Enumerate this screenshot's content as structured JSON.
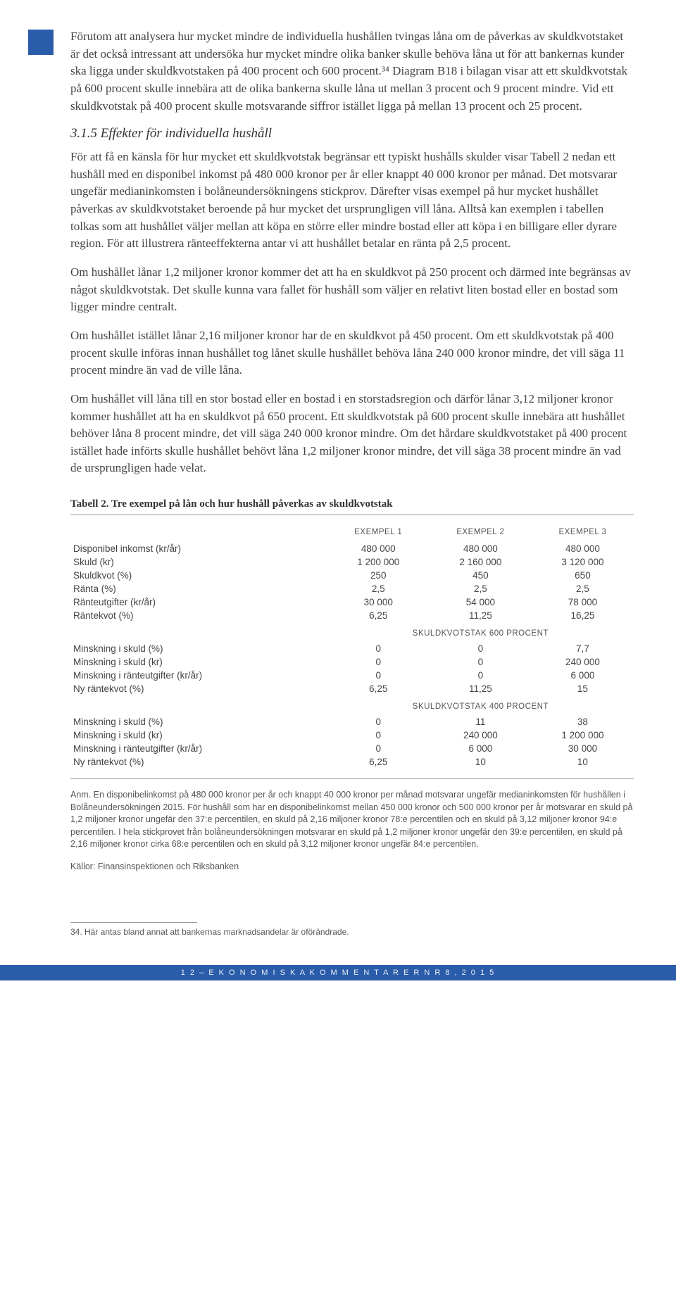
{
  "para1": "Förutom att analysera hur mycket mindre de individuella hushållen tvingas låna om de påverkas av skuldkvotstaket är det också intressant att undersöka hur mycket mindre olika banker skulle behöva låna ut för att bankernas kunder ska ligga under skuldkvotstaken på 400 procent och 600 procent.³⁴ Diagram B18 i bilagan visar att ett skuldkvotstak på 600 procent skulle innebära att de olika bankerna skulle låna ut mellan 3 procent och 9 procent mindre. Vid ett skuldkvotstak på 400 procent skulle motsvarande siffror istället ligga på mellan 13 procent och 25 procent.",
  "heading": "3.1.5 Effekter för individuella hushåll",
  "para2": "För att få en känsla för hur mycket ett skuldkvotstak begränsar ett typiskt hushålls skulder visar Tabell 2 nedan ett hushåll med en disponibel inkomst på 480 000 kronor per år eller knappt 40 000 kronor per månad. Det motsvarar ungefär medianinkomsten i bolåneundersökningens stickprov. Därefter visas exempel på hur mycket hushållet påverkas av skuldkvotstaket beroende på hur mycket det ursprungligen vill låna. Alltså kan exemplen i tabellen tolkas som att hushållet väljer mellan att köpa en större eller mindre bostad eller att köpa i en billigare eller dyrare region. För att illustrera ränteeffekterna antar vi att hushållet betalar en ränta på 2,5 procent.",
  "para3": "Om hushållet lånar 1,2 miljoner kronor kommer det att ha en skuldkvot på 250 procent och därmed inte begränsas av något skuldkvotstak. Det skulle kunna vara fallet för hushåll som väljer en relativt liten bostad eller en bostad som ligger mindre centralt.",
  "para4": "Om hushållet istället lånar 2,16 miljoner kronor har de en skuldkvot på 450 procent. Om ett skuldkvotstak på 400 procent skulle införas innan hushållet tog lånet skulle hushållet behöva låna 240 000 kronor mindre, det vill säga 11 procent mindre än vad de ville låna.",
  "para5": "Om hushållet vill låna till en stor bostad eller en bostad i en storstadsregion och därför lånar 3,12 miljoner kronor kommer hushållet att ha en skuldkvot på 650 procent. Ett skuldkvotstak på 600 procent skulle innebära att hushållet behöver låna 8 procent mindre, det vill säga 240 000 kronor mindre. Om det hårdare skuldkvotstaket på 400 procent istället hade införts skulle hushållet behövt låna 1,2 miljoner kronor mindre, det vill säga 38 procent mindre än vad de ursprungligen hade velat.",
  "table": {
    "title": "Tabell 2. Tre exempel på lån och hur hushåll påverkas av skuldkvotstak",
    "headers": [
      "",
      "EXEMPEL 1",
      "EXEMPEL 2",
      "EXEMPEL 3"
    ],
    "block1": [
      [
        "Disponibel inkomst (kr/år)",
        "480 000",
        "480 000",
        "480 000"
      ],
      [
        "Skuld (kr)",
        "1 200 000",
        "2 160 000",
        "3 120 000"
      ],
      [
        "Skuldkvot (%)",
        "250",
        "450",
        "650"
      ],
      [
        "Ränta (%)",
        "2,5",
        "2,5",
        "2,5"
      ],
      [
        "Ränteutgifter (kr/år)",
        "30 000",
        "54 000",
        "78 000"
      ],
      [
        "Räntekvot (%)",
        "6,25",
        "11,25",
        "16,25"
      ]
    ],
    "sect600": "SKULDKVOTSTAK 600 PROCENT",
    "block2": [
      [
        "Minskning i skuld (%)",
        "0",
        "0",
        "7,7"
      ],
      [
        "Minskning i skuld (kr)",
        "0",
        "0",
        "240 000"
      ],
      [
        "Minskning i ränteutgifter (kr/år)",
        "0",
        "0",
        "6 000"
      ],
      [
        "Ny räntekvot (%)",
        "6,25",
        "11,25",
        "15"
      ]
    ],
    "sect400": "SKULDKVOTSTAK 400 PROCENT",
    "block3": [
      [
        "Minskning i skuld (%)",
        "0",
        "11",
        "38"
      ],
      [
        "Minskning i skuld (kr)",
        "0",
        "240 000",
        "1 200 000"
      ],
      [
        "Minskning i ränteutgifter (kr/år)",
        "0",
        "6 000",
        "30 000"
      ],
      [
        "Ny räntekvot (%)",
        "6,25",
        "10",
        "10"
      ]
    ]
  },
  "anm": "Anm. En disponibelinkomst på 480 000 kronor per år och knappt 40 000 kronor per månad motsvarar ungefär medianinkomsten för hushållen i Bolåneundersökningen 2015. För hushåll som har en disponibelinkomst mellan 450 000 kronor och 500 000 kronor per år motsvarar en skuld på 1,2 miljoner kronor ungefär den 37:e percentilen, en skuld på 2,16 miljoner kronor 78:e percentilen och en skuld på 3,12 miljoner kronor 94:e percentilen. I hela stickprovet från bolåneundersökningen motsvarar en skuld på 1,2 miljoner kronor ungefär den 39:e percentilen, en skuld på 2,16 miljoner kronor cirka 68:e percentilen och en skuld på 3,12 miljoner kronor ungefär 84:e percentilen.",
  "kallor": "Källor: Finansinspektionen och Riksbanken",
  "footnote": "34. Här antas bland annat att bankernas marknadsandelar är oförändrade.",
  "footer": "1 2  –  E K O N O M I S K A   K O M M E N T A R E R   N R   8 ,   2 0 1 5"
}
